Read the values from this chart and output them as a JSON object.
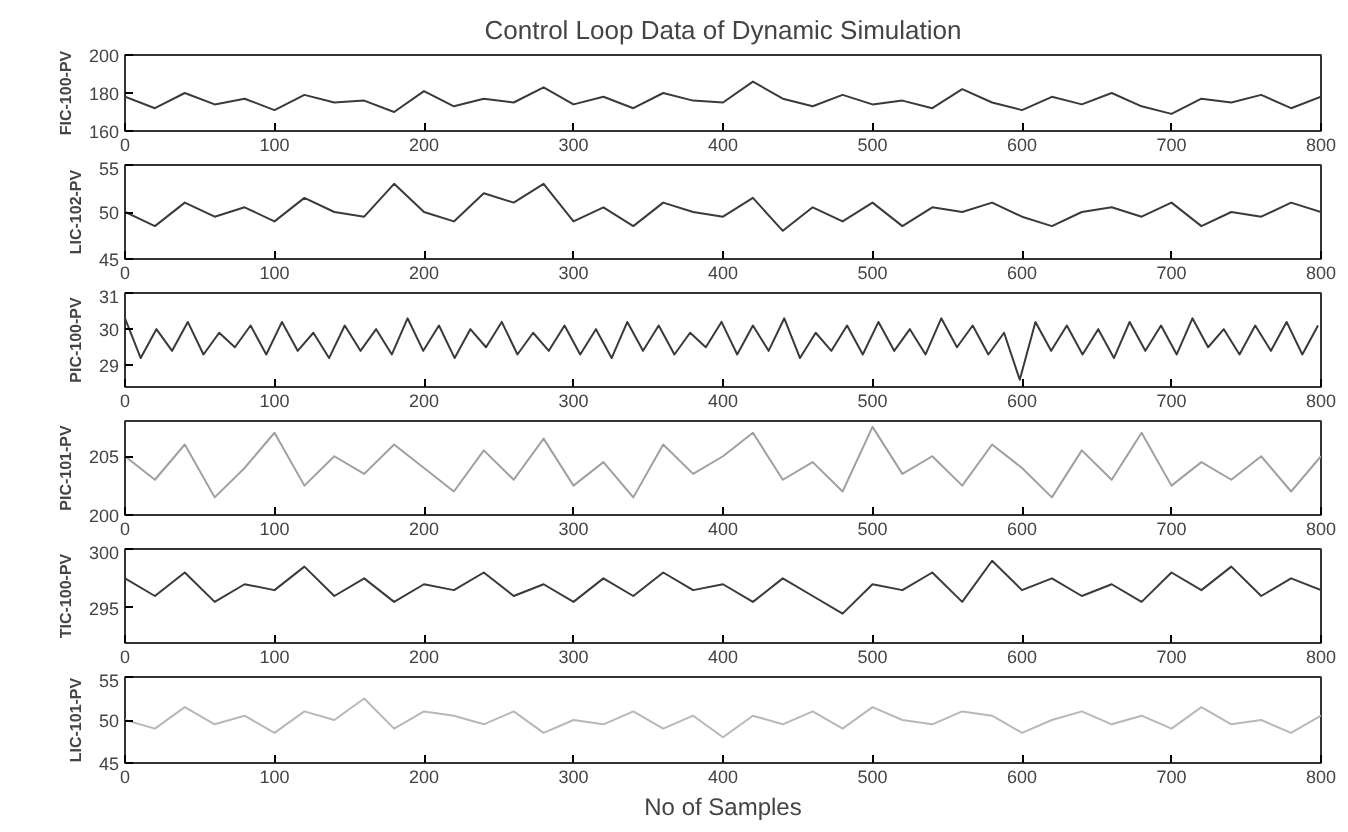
{
  "chart_data": [
    {
      "type": "line",
      "title": "Control Loop Data of Dynamic Simulation",
      "ylabel": "FIC-100-PV",
      "xlim": [
        0,
        800
      ],
      "xticks": [
        0,
        100,
        200,
        300,
        400,
        500,
        600,
        700,
        800
      ],
      "ylim": [
        160,
        200
      ],
      "yticks": [
        160,
        180,
        200
      ],
      "x": [
        0,
        20,
        40,
        60,
        80,
        100,
        120,
        140,
        160,
        180,
        200,
        220,
        240,
        260,
        280,
        300,
        320,
        340,
        360,
        380,
        400,
        420,
        440,
        460,
        480,
        500,
        520,
        540,
        560,
        580,
        600,
        620,
        640,
        660,
        680,
        700,
        720,
        740,
        760,
        780,
        800
      ],
      "series": [
        {
          "color": "#3a3a3a",
          "values": [
            178,
            172,
            180,
            174,
            177,
            171,
            179,
            175,
            176,
            170,
            181,
            173,
            177,
            175,
            183,
            174,
            178,
            172,
            180,
            176,
            175,
            186,
            177,
            173,
            179,
            174,
            176,
            172,
            182,
            175,
            171,
            178,
            174,
            180,
            173,
            169,
            177,
            175,
            179,
            172,
            178
          ]
        }
      ]
    },
    {
      "type": "line",
      "ylabel": "LIC-102-PV",
      "xlim": [
        0,
        800
      ],
      "xticks": [
        0,
        100,
        200,
        300,
        400,
        500,
        600,
        700,
        800
      ],
      "ylim": [
        45,
        55
      ],
      "yticks": [
        45,
        50,
        55
      ],
      "x": [
        0,
        20,
        40,
        60,
        80,
        100,
        120,
        140,
        160,
        180,
        200,
        220,
        240,
        260,
        280,
        300,
        320,
        340,
        360,
        380,
        400,
        420,
        440,
        460,
        480,
        500,
        520,
        540,
        560,
        580,
        600,
        620,
        640,
        660,
        680,
        700,
        720,
        740,
        760,
        780,
        800
      ],
      "series": [
        {
          "color": "#3a3a3a",
          "values": [
            50,
            48.5,
            51,
            49.5,
            50.5,
            49,
            51.5,
            50,
            49.5,
            53,
            50,
            49,
            52,
            51,
            53,
            49,
            50.5,
            48.5,
            51,
            50,
            49.5,
            51.5,
            48,
            50.5,
            49,
            51,
            48.5,
            50.5,
            50,
            51,
            49.5,
            48.5,
            50,
            50.5,
            49.5,
            51,
            48.5,
            50,
            49.5,
            51,
            50
          ]
        }
      ]
    },
    {
      "type": "line",
      "ylabel": "PIC-100-PV",
      "xlim": [
        0,
        800
      ],
      "xticks": [
        0,
        100,
        200,
        300,
        400,
        500,
        600,
        700,
        800
      ],
      "ylim": [
        28.4,
        31
      ],
      "yticks": [
        29,
        30,
        31
      ],
      "x": [
        0,
        10.5,
        21,
        31.5,
        42,
        52.5,
        63,
        73.5,
        84,
        94.5,
        105,
        115.5,
        126,
        136.5,
        147,
        157.5,
        168,
        178.5,
        189,
        199.5,
        210,
        220.5,
        231,
        241.5,
        252,
        262.5,
        273,
        283.5,
        294,
        304.5,
        315,
        325.5,
        336,
        346.5,
        357,
        367.5,
        378,
        388.5,
        399,
        409.5,
        420,
        430.5,
        441,
        451.5,
        462,
        472.5,
        483,
        493.5,
        504,
        514.5,
        525,
        535.5,
        546,
        556.5,
        567,
        577.5,
        588,
        598.5,
        609,
        619.5,
        630,
        640.5,
        651,
        661.5,
        672,
        682.5,
        693,
        703.5,
        714,
        724.5,
        735,
        745.5,
        756,
        766.5,
        777,
        787.5,
        798
      ],
      "series": [
        {
          "color": "#3a3a3a",
          "values": [
            30.3,
            29.2,
            30.0,
            29.4,
            30.2,
            29.3,
            29.9,
            29.5,
            30.1,
            29.3,
            30.2,
            29.4,
            29.9,
            29.2,
            30.1,
            29.4,
            30.0,
            29.3,
            30.3,
            29.4,
            30.1,
            29.2,
            30.0,
            29.5,
            30.2,
            29.3,
            29.9,
            29.4,
            30.1,
            29.3,
            30.0,
            29.2,
            30.2,
            29.4,
            30.1,
            29.3,
            29.9,
            29.5,
            30.2,
            29.3,
            30.1,
            29.4,
            30.3,
            29.2,
            29.9,
            29.4,
            30.1,
            29.3,
            30.2,
            29.4,
            30.0,
            29.3,
            30.3,
            29.5,
            30.1,
            29.3,
            29.9,
            28.6,
            30.2,
            29.4,
            30.1,
            29.3,
            30.0,
            29.2,
            30.2,
            29.4,
            30.1,
            29.3,
            30.3,
            29.5,
            30.0,
            29.3,
            30.1,
            29.4,
            30.2,
            29.3,
            30.1
          ]
        }
      ]
    },
    {
      "type": "line",
      "ylabel": "PIC-101-PV",
      "xlim": [
        0,
        800
      ],
      "xticks": [
        0,
        100,
        200,
        300,
        400,
        500,
        600,
        700,
        800
      ],
      "ylim": [
        200,
        208
      ],
      "yticks": [
        200,
        205
      ],
      "x": [
        0,
        20,
        40,
        60,
        80,
        100,
        120,
        140,
        160,
        180,
        200,
        220,
        240,
        260,
        280,
        300,
        320,
        340,
        360,
        380,
        400,
        420,
        440,
        460,
        480,
        500,
        520,
        540,
        560,
        580,
        600,
        620,
        640,
        660,
        680,
        700,
        720,
        740,
        760,
        780,
        800
      ],
      "series": [
        {
          "color": "#a0a0a0",
          "values": [
            205,
            203,
            206,
            201.5,
            204,
            207,
            202.5,
            205,
            203.5,
            206,
            204,
            202,
            205.5,
            203,
            206.5,
            202.5,
            204.5,
            201.5,
            206,
            203.5,
            205,
            207,
            203,
            204.5,
            202,
            207.5,
            203.5,
            205,
            202.5,
            206,
            204,
            201.5,
            205.5,
            203,
            207,
            202.5,
            204.5,
            203,
            205,
            202,
            205
          ]
        }
      ]
    },
    {
      "type": "line",
      "ylabel": "TIC-100-PV",
      "xlim": [
        0,
        800
      ],
      "xticks": [
        0,
        100,
        200,
        300,
        400,
        500,
        600,
        700,
        800
      ],
      "ylim": [
        292,
        300
      ],
      "yticks": [
        295,
        300
      ],
      "x": [
        0,
        20,
        40,
        60,
        80,
        100,
        120,
        140,
        160,
        180,
        200,
        220,
        240,
        260,
        280,
        300,
        320,
        340,
        360,
        380,
        400,
        420,
        440,
        460,
        480,
        500,
        520,
        540,
        560,
        580,
        600,
        620,
        640,
        660,
        680,
        700,
        720,
        740,
        760,
        780,
        800
      ],
      "series": [
        {
          "color": "#3a3a3a",
          "values": [
            297.5,
            296,
            298,
            295.5,
            297,
            296.5,
            298.5,
            296,
            297.5,
            295.5,
            297,
            296.5,
            298,
            296,
            297,
            295.5,
            297.5,
            296,
            298,
            296.5,
            297,
            295.5,
            297.5,
            296,
            294.5,
            297,
            296.5,
            298,
            295.5,
            299,
            296.5,
            297.5,
            296,
            297,
            295.5,
            298,
            296.5,
            298.5,
            296,
            297.5,
            296.5
          ]
        }
      ]
    },
    {
      "type": "line",
      "ylabel": "LIC-101-PV",
      "xlabel": "No of Samples",
      "xlim": [
        0,
        800
      ],
      "xticks": [
        0,
        100,
        200,
        300,
        400,
        500,
        600,
        700,
        800
      ],
      "ylim": [
        45,
        55
      ],
      "yticks": [
        45,
        50,
        55
      ],
      "x": [
        0,
        20,
        40,
        60,
        80,
        100,
        120,
        140,
        160,
        180,
        200,
        220,
        240,
        260,
        280,
        300,
        320,
        340,
        360,
        380,
        400,
        420,
        440,
        460,
        480,
        500,
        520,
        540,
        560,
        580,
        600,
        620,
        640,
        660,
        680,
        700,
        720,
        740,
        760,
        780,
        800
      ],
      "series": [
        {
          "color": "#b8b8b8",
          "values": [
            50,
            49,
            51.5,
            49.5,
            50.5,
            48.5,
            51,
            50,
            52.5,
            49,
            51,
            50.5,
            49.5,
            51,
            48.5,
            50,
            49.5,
            51,
            49,
            50.5,
            48,
            50.5,
            49.5,
            51,
            49,
            51.5,
            50,
            49.5,
            51,
            50.5,
            48.5,
            50,
            51,
            49.5,
            50.5,
            49,
            51.5,
            49.5,
            50,
            48.5,
            50.5
          ]
        }
      ]
    }
  ]
}
